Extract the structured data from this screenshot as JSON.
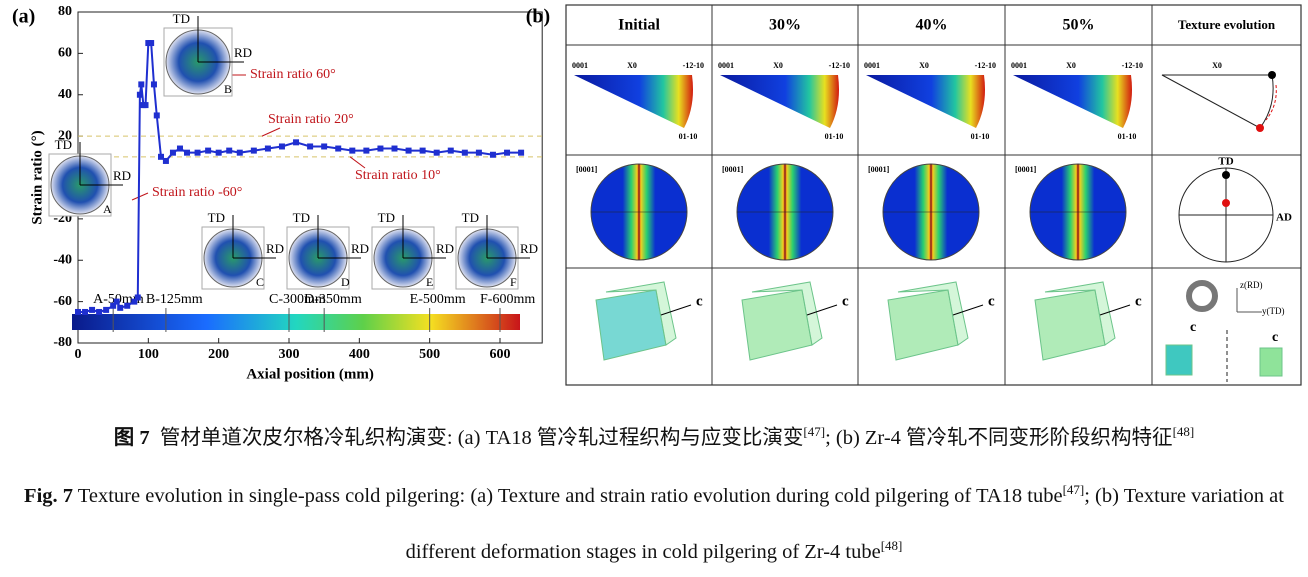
{
  "chart_data": {
    "type": "line",
    "panel_label": "(a)",
    "x_label": "Axial position (mm)",
    "y_label": "Strain ratio (°)",
    "xlim": [
      0,
      660
    ],
    "ylim": [
      -80,
      80
    ],
    "xticks": [
      0,
      100,
      200,
      300,
      400,
      500,
      600
    ],
    "yticks": [
      -80,
      -60,
      -40,
      -20,
      0,
      20,
      40,
      60,
      80
    ],
    "x": [
      0,
      10,
      20,
      30,
      40,
      50,
      55,
      60,
      70,
      80,
      85,
      88,
      90,
      93,
      96,
      100,
      104,
      108,
      112,
      118,
      125,
      135,
      145,
      155,
      170,
      185,
      200,
      215,
      230,
      250,
      270,
      290,
      310,
      330,
      350,
      370,
      390,
      410,
      430,
      450,
      470,
      490,
      510,
      530,
      550,
      570,
      590,
      610,
      630
    ],
    "series": [
      {
        "color": "#1f2fd0",
        "values": [
          -65,
          -65,
          -64,
          -65,
          -64,
          -62,
          -60,
          -63,
          -62,
          -60,
          -58,
          40,
          45,
          35,
          35,
          65,
          65,
          45,
          30,
          10,
          8,
          12,
          14,
          12,
          12,
          13,
          12,
          13,
          12,
          13,
          14,
          15,
          17,
          15,
          15,
          14,
          13,
          13,
          14,
          14,
          13,
          13,
          12,
          13,
          12,
          12,
          11,
          12,
          12
        ]
      }
    ],
    "reference_lines": [
      {
        "value": 20,
        "label": "Strain ratio 20°"
      },
      {
        "value": 10,
        "label": "Strain ratio 10°"
      }
    ],
    "annotations": [
      "Strain ratio 60°",
      "Strain ratio -60°"
    ],
    "positions": [
      {
        "value": 50,
        "label": "A-50mm"
      },
      {
        "value": 125,
        "label": "B-125mm"
      },
      {
        "value": 300,
        "label": "C-300mm"
      },
      {
        "value": 350,
        "label": "D-350mm"
      },
      {
        "value": 500,
        "label": "E-500mm"
      },
      {
        "value": 600,
        "label": "F-600mm"
      }
    ],
    "insets": [
      "A",
      "B",
      "C",
      "D",
      "E",
      "F"
    ],
    "inset_axes": [
      "TD",
      "RD"
    ]
  },
  "panel_b": {
    "label": "(b)",
    "headers": [
      "Initial",
      "30%",
      "40%",
      "50%",
      "Texture evolution"
    ],
    "ipf_labels": [
      "0001",
      "X0",
      "-12-10",
      "01-10"
    ],
    "pole_label": "[0001]",
    "evolution_labels": {
      "x0": "X0",
      "td": "TD",
      "ad": "AD",
      "c": "c",
      "z": "z(RD)",
      "y": "y(TD)"
    }
  },
  "caption_cn": {
    "label": "图 7",
    "text_1": "管材单道次皮尔格冷轧织构演变: (a) TA18 管冷轧过程织构与应变比演变",
    "ref_1": "[47]",
    "text_2": "; (b) Zr-4 管冷轧不同变形阶段织构特征",
    "ref_2": "[48]"
  },
  "caption_en": {
    "label": "Fig. 7",
    "text_1": "Texture evolution in single-pass cold pilgering: (a) Texture and strain ratio evolution during cold pilgering of TA18 tube",
    "ref_1": "[47]",
    "text_2": "; (b) Texture variation at different deformation stages in cold pilgering of Zr-4 tube",
    "ref_2": "[48]"
  }
}
